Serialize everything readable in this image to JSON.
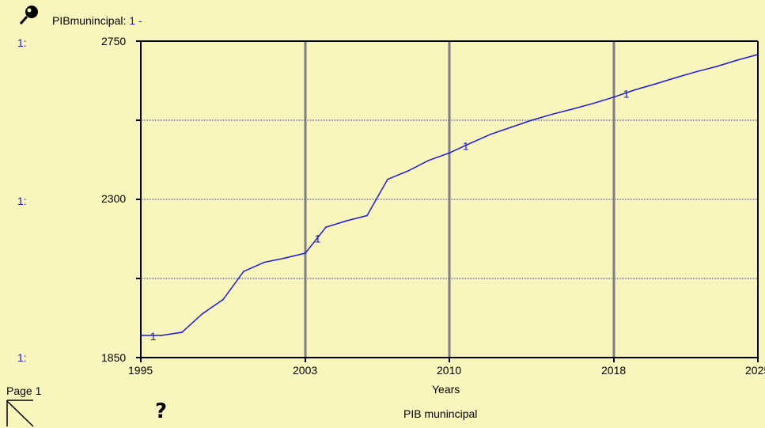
{
  "header": {
    "var_label": "PIBmunincipal:",
    "series_tag": "1 -"
  },
  "axis_scale_tags": [
    "1:",
    "1:",
    "1:"
  ],
  "footer": {
    "page_label": "Page 1",
    "help_glyph": "?",
    "title": "PIB munincipal",
    "xlabel": "Years"
  },
  "icons": {
    "pin": "pushpin-icon",
    "page": "page-turn-icon",
    "help": "help-icon"
  },
  "colors": {
    "background": "#f8f5bd",
    "series": "#1c1ccc",
    "grid": "#808080"
  },
  "chart_data": {
    "type": "line",
    "title": "PIB munincipal",
    "xlabel": "Years",
    "ylabel": "",
    "xlim": [
      1995,
      2025
    ],
    "ylim": [
      1850,
      2750
    ],
    "x_ticks": [
      1995,
      2003,
      2010,
      2018,
      2025
    ],
    "x_tick_labels": [
      "1995",
      "2003",
      "2010",
      "2018",
      "2025"
    ],
    "y_tick_labels": [
      "2750",
      "2300",
      "1850"
    ],
    "grid": true,
    "series": [
      {
        "name": "1",
        "x": [
          1995,
          1996,
          1997,
          1998,
          1999,
          2000,
          2001,
          2002,
          2003,
          2004,
          2005,
          2006,
          2007,
          2008,
          2009,
          2010,
          2011,
          2012,
          2013,
          2014,
          2015,
          2016,
          2017,
          2018,
          2019,
          2020,
          2021,
          2022,
          2023,
          2024,
          2025
        ],
        "values": [
          1913,
          1913,
          1922,
          1975,
          2015,
          2095,
          2121,
          2133,
          2147,
          2221,
          2239,
          2254,
          2357,
          2381,
          2411,
          2432,
          2459,
          2485,
          2505,
          2525,
          2542,
          2557,
          2573,
          2591,
          2611,
          2628,
          2646,
          2663,
          2678,
          2696,
          2712
        ]
      }
    ]
  }
}
